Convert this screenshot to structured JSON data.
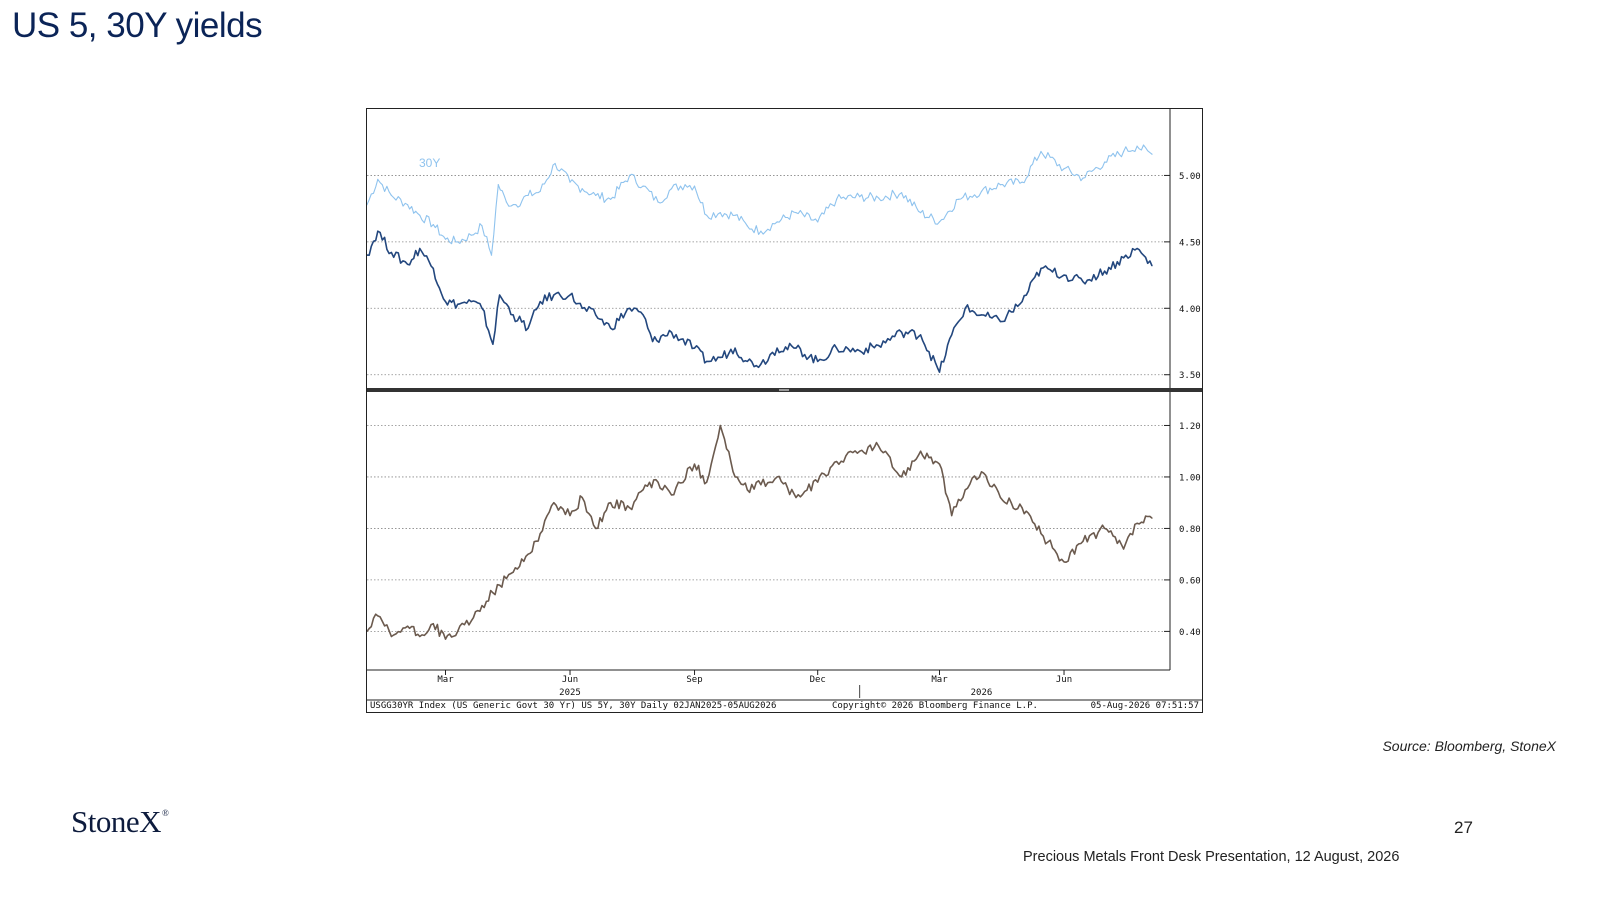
{
  "page": {
    "title": "US 5, 30Y yields",
    "source": "Source: Bloomberg, StoneX",
    "logo": "StoneX",
    "logo_mark": "®",
    "page_number": "27",
    "footer": "Precious Metals Front Desk Presentation, 12 August, 2026"
  },
  "colors": {
    "series_30y": "#8fc3ee",
    "series_5y": "#23477e",
    "spread": "#6b5a4e",
    "title": "#0b2457"
  },
  "chart_data": [
    {
      "type": "line",
      "panel": "top",
      "x_range": [
        "2025-01-02",
        "2026-08-05"
      ],
      "ylim": [
        3.4,
        5.5
      ],
      "yticks": [
        "5.00",
        "4.50",
        "4.00",
        "3.50"
      ],
      "grid": true,
      "series": [
        {
          "name": "30Y",
          "points": [
            [
              "2025-01-02",
              4.78
            ],
            [
              "2025-01-10",
              4.97
            ],
            [
              "2025-01-20",
              4.85
            ],
            [
              "2025-02-01",
              4.78
            ],
            [
              "2025-02-10",
              4.7
            ],
            [
              "2025-02-20",
              4.63
            ],
            [
              "2025-03-01",
              4.52
            ],
            [
              "2025-03-10",
              4.5
            ],
            [
              "2025-03-20",
              4.55
            ],
            [
              "2025-03-28",
              4.62
            ],
            [
              "2025-04-04",
              4.4
            ],
            [
              "2025-04-09",
              4.93
            ],
            [
              "2025-04-15",
              4.8
            ],
            [
              "2025-04-22",
              4.78
            ],
            [
              "2025-05-01",
              4.85
            ],
            [
              "2025-05-10",
              4.88
            ],
            [
              "2025-05-21",
              5.09
            ],
            [
              "2025-06-01",
              4.95
            ],
            [
              "2025-06-10",
              4.9
            ],
            [
              "2025-06-20",
              4.85
            ],
            [
              "2025-07-01",
              4.82
            ],
            [
              "2025-07-15",
              5.0
            ],
            [
              "2025-07-25",
              4.92
            ],
            [
              "2025-08-05",
              4.8
            ],
            [
              "2025-08-15",
              4.9
            ],
            [
              "2025-08-25",
              4.93
            ],
            [
              "2025-09-01",
              4.92
            ],
            [
              "2025-09-10",
              4.7
            ],
            [
              "2025-09-20",
              4.72
            ],
            [
              "2025-10-01",
              4.7
            ],
            [
              "2025-10-10",
              4.62
            ],
            [
              "2025-10-20",
              4.58
            ],
            [
              "2025-11-01",
              4.65
            ],
            [
              "2025-11-15",
              4.72
            ],
            [
              "2025-12-01",
              4.65
            ],
            [
              "2025-12-15",
              4.82
            ],
            [
              "2026-01-01",
              4.84
            ],
            [
              "2026-01-15",
              4.83
            ],
            [
              "2026-02-01",
              4.87
            ],
            [
              "2026-02-15",
              4.72
            ],
            [
              "2026-03-01",
              4.65
            ],
            [
              "2026-03-15",
              4.82
            ],
            [
              "2026-04-01",
              4.88
            ],
            [
              "2026-04-15",
              4.93
            ],
            [
              "2026-05-01",
              4.95
            ],
            [
              "2026-05-15",
              5.18
            ],
            [
              "2026-06-01",
              5.05
            ],
            [
              "2026-06-15",
              4.98
            ],
            [
              "2026-07-01",
              5.1
            ],
            [
              "2026-07-15",
              5.18
            ],
            [
              "2026-07-25",
              5.22
            ],
            [
              "2026-08-05",
              5.16
            ]
          ]
        },
        {
          "name": "US 5Y",
          "points": [
            [
              "2025-01-02",
              4.4
            ],
            [
              "2025-01-10",
              4.58
            ],
            [
              "2025-01-20",
              4.42
            ],
            [
              "2025-02-01",
              4.33
            ],
            [
              "2025-02-10",
              4.45
            ],
            [
              "2025-02-20",
              4.3
            ],
            [
              "2025-03-01",
              4.05
            ],
            [
              "2025-03-10",
              4.03
            ],
            [
              "2025-03-20",
              4.05
            ],
            [
              "2025-03-28",
              4.0
            ],
            [
              "2025-04-05",
              3.73
            ],
            [
              "2025-04-10",
              4.1
            ],
            [
              "2025-04-20",
              3.95
            ],
            [
              "2025-05-01",
              3.85
            ],
            [
              "2025-05-10",
              4.05
            ],
            [
              "2025-05-20",
              4.1
            ],
            [
              "2025-06-01",
              4.1
            ],
            [
              "2025-06-10",
              4.0
            ],
            [
              "2025-06-20",
              3.95
            ],
            [
              "2025-07-01",
              3.85
            ],
            [
              "2025-07-15",
              4.0
            ],
            [
              "2025-07-25",
              3.95
            ],
            [
              "2025-08-01",
              3.75
            ],
            [
              "2025-08-15",
              3.82
            ],
            [
              "2025-09-01",
              3.7
            ],
            [
              "2025-09-10",
              3.6
            ],
            [
              "2025-09-20",
              3.63
            ],
            [
              "2025-10-01",
              3.7
            ],
            [
              "2025-10-10",
              3.6
            ],
            [
              "2025-10-20",
              3.58
            ],
            [
              "2025-11-01",
              3.7
            ],
            [
              "2025-11-15",
              3.7
            ],
            [
              "2025-12-01",
              3.6
            ],
            [
              "2025-12-15",
              3.7
            ],
            [
              "2026-01-01",
              3.68
            ],
            [
              "2026-01-15",
              3.72
            ],
            [
              "2026-02-01",
              3.82
            ],
            [
              "2026-02-15",
              3.8
            ],
            [
              "2026-03-01",
              3.52
            ],
            [
              "2026-03-10",
              3.8
            ],
            [
              "2026-03-20",
              4.0
            ],
            [
              "2026-04-01",
              3.95
            ],
            [
              "2026-04-15",
              3.9
            ],
            [
              "2026-05-01",
              4.05
            ],
            [
              "2026-05-15",
              4.3
            ],
            [
              "2026-06-01",
              4.25
            ],
            [
              "2026-06-15",
              4.2
            ],
            [
              "2026-07-01",
              4.28
            ],
            [
              "2026-07-15",
              4.38
            ],
            [
              "2026-07-25",
              4.45
            ],
            [
              "2026-08-05",
              4.32
            ]
          ]
        }
      ],
      "annotations": [
        "30Y"
      ]
    },
    {
      "type": "line",
      "panel": "bottom",
      "x_range": [
        "2025-01-02",
        "2026-08-05"
      ],
      "ylim": [
        0.25,
        1.33
      ],
      "yticks": [
        "1.20",
        "1.00",
        "0.80",
        "0.60",
        "0.40"
      ],
      "grid": true,
      "series": [
        {
          "name": "",
          "points": [
            [
              "2025-01-02",
              0.4
            ],
            [
              "2025-01-10",
              0.46
            ],
            [
              "2025-01-20",
              0.38
            ],
            [
              "2025-02-01",
              0.42
            ],
            [
              "2025-02-10",
              0.38
            ],
            [
              "2025-02-20",
              0.43
            ],
            [
              "2025-03-01",
              0.37
            ],
            [
              "2025-03-10",
              0.4
            ],
            [
              "2025-03-20",
              0.44
            ],
            [
              "2025-03-28",
              0.5
            ],
            [
              "2025-04-05",
              0.55
            ],
            [
              "2025-04-10",
              0.58
            ],
            [
              "2025-04-20",
              0.63
            ],
            [
              "2025-05-01",
              0.7
            ],
            [
              "2025-05-10",
              0.78
            ],
            [
              "2025-05-20",
              0.9
            ],
            [
              "2025-06-01",
              0.85
            ],
            [
              "2025-06-10",
              0.92
            ],
            [
              "2025-06-20",
              0.8
            ],
            [
              "2025-07-01",
              0.9
            ],
            [
              "2025-07-15",
              0.88
            ],
            [
              "2025-07-25",
              0.95
            ],
            [
              "2025-08-05",
              0.98
            ],
            [
              "2025-08-15",
              0.93
            ],
            [
              "2025-09-01",
              1.05
            ],
            [
              "2025-09-10",
              0.98
            ],
            [
              "2025-09-20",
              1.2
            ],
            [
              "2025-10-01",
              1.0
            ],
            [
              "2025-10-10",
              0.95
            ],
            [
              "2025-10-20",
              0.97
            ],
            [
              "2025-11-01",
              1.0
            ],
            [
              "2025-11-15",
              0.92
            ],
            [
              "2025-12-01",
              0.98
            ],
            [
              "2025-12-15",
              1.06
            ],
            [
              "2026-01-01",
              1.1
            ],
            [
              "2026-01-15",
              1.12
            ],
            [
              "2026-02-01",
              1.0
            ],
            [
              "2026-02-15",
              1.1
            ],
            [
              "2026-03-01",
              1.05
            ],
            [
              "2026-03-10",
              0.85
            ],
            [
              "2026-03-20",
              0.95
            ],
            [
              "2026-04-01",
              1.02
            ],
            [
              "2026-04-15",
              0.92
            ],
            [
              "2026-05-01",
              0.88
            ],
            [
              "2026-05-15",
              0.78
            ],
            [
              "2026-06-01",
              0.67
            ],
            [
              "2026-06-15",
              0.75
            ],
            [
              "2026-07-01",
              0.8
            ],
            [
              "2026-07-15",
              0.72
            ],
            [
              "2026-07-25",
              0.82
            ],
            [
              "2026-08-05",
              0.84
            ]
          ]
        }
      ]
    }
  ],
  "x_axis": {
    "month_ticks": [
      {
        "label": "Mar",
        "date": "2025-03-01"
      },
      {
        "label": "Jun",
        "date": "2025-06-01"
      },
      {
        "label": "Sep",
        "date": "2025-09-01"
      },
      {
        "label": "Dec",
        "date": "2025-12-01"
      },
      {
        "label": "Mar",
        "date": "2026-03-01"
      },
      {
        "label": "Jun",
        "date": "2026-06-01"
      }
    ],
    "year_labels": [
      {
        "label": "2025",
        "date": "2025-06-01"
      },
      {
        "label": "2026",
        "date": "2026-04-01"
      }
    ]
  },
  "bloomberg_footer": {
    "left": "USGG30YR Index (US Generic Govt 30 Yr) US 5Y, 30Y Daily 02JAN2025-05AUG2026",
    "center": "Copyright© 2026 Bloomberg Finance L.P.",
    "right": "05-Aug-2026 07:51:57"
  }
}
